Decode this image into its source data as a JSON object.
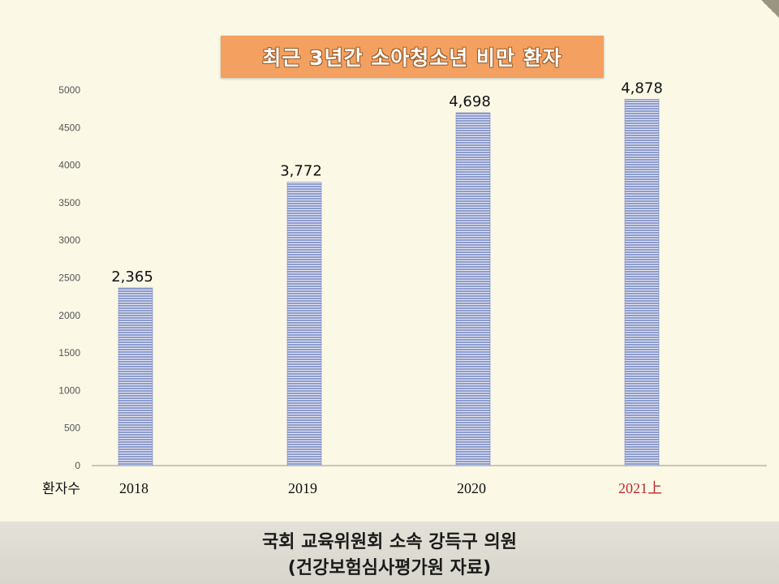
{
  "chart_data": {
    "type": "bar",
    "title": "최근 3년간 소아청소년 비만 환자",
    "categories": [
      "2018",
      "2019",
      "2020",
      "2021上"
    ],
    "values": [
      2365,
      3772,
      4698,
      4878
    ],
    "value_labels": [
      "2,365",
      "3,772",
      "4,698",
      "4,878"
    ],
    "series_label": "환자수",
    "ylim": [
      0,
      5000
    ],
    "yticks": [
      0,
      500,
      1000,
      1500,
      2000,
      2500,
      3000,
      3500,
      4000,
      4500,
      5000
    ],
    "grid": false,
    "colors": {
      "bar": "#8e9ccc",
      "bar_stripe": "#ffffff",
      "highlight_category": "#c0282d",
      "axis_text": "#555555"
    }
  },
  "footer": {
    "line1": "국회 교육위원회 소속 강득구 의원",
    "line2": "(건강보험심사평가원  자료)"
  }
}
